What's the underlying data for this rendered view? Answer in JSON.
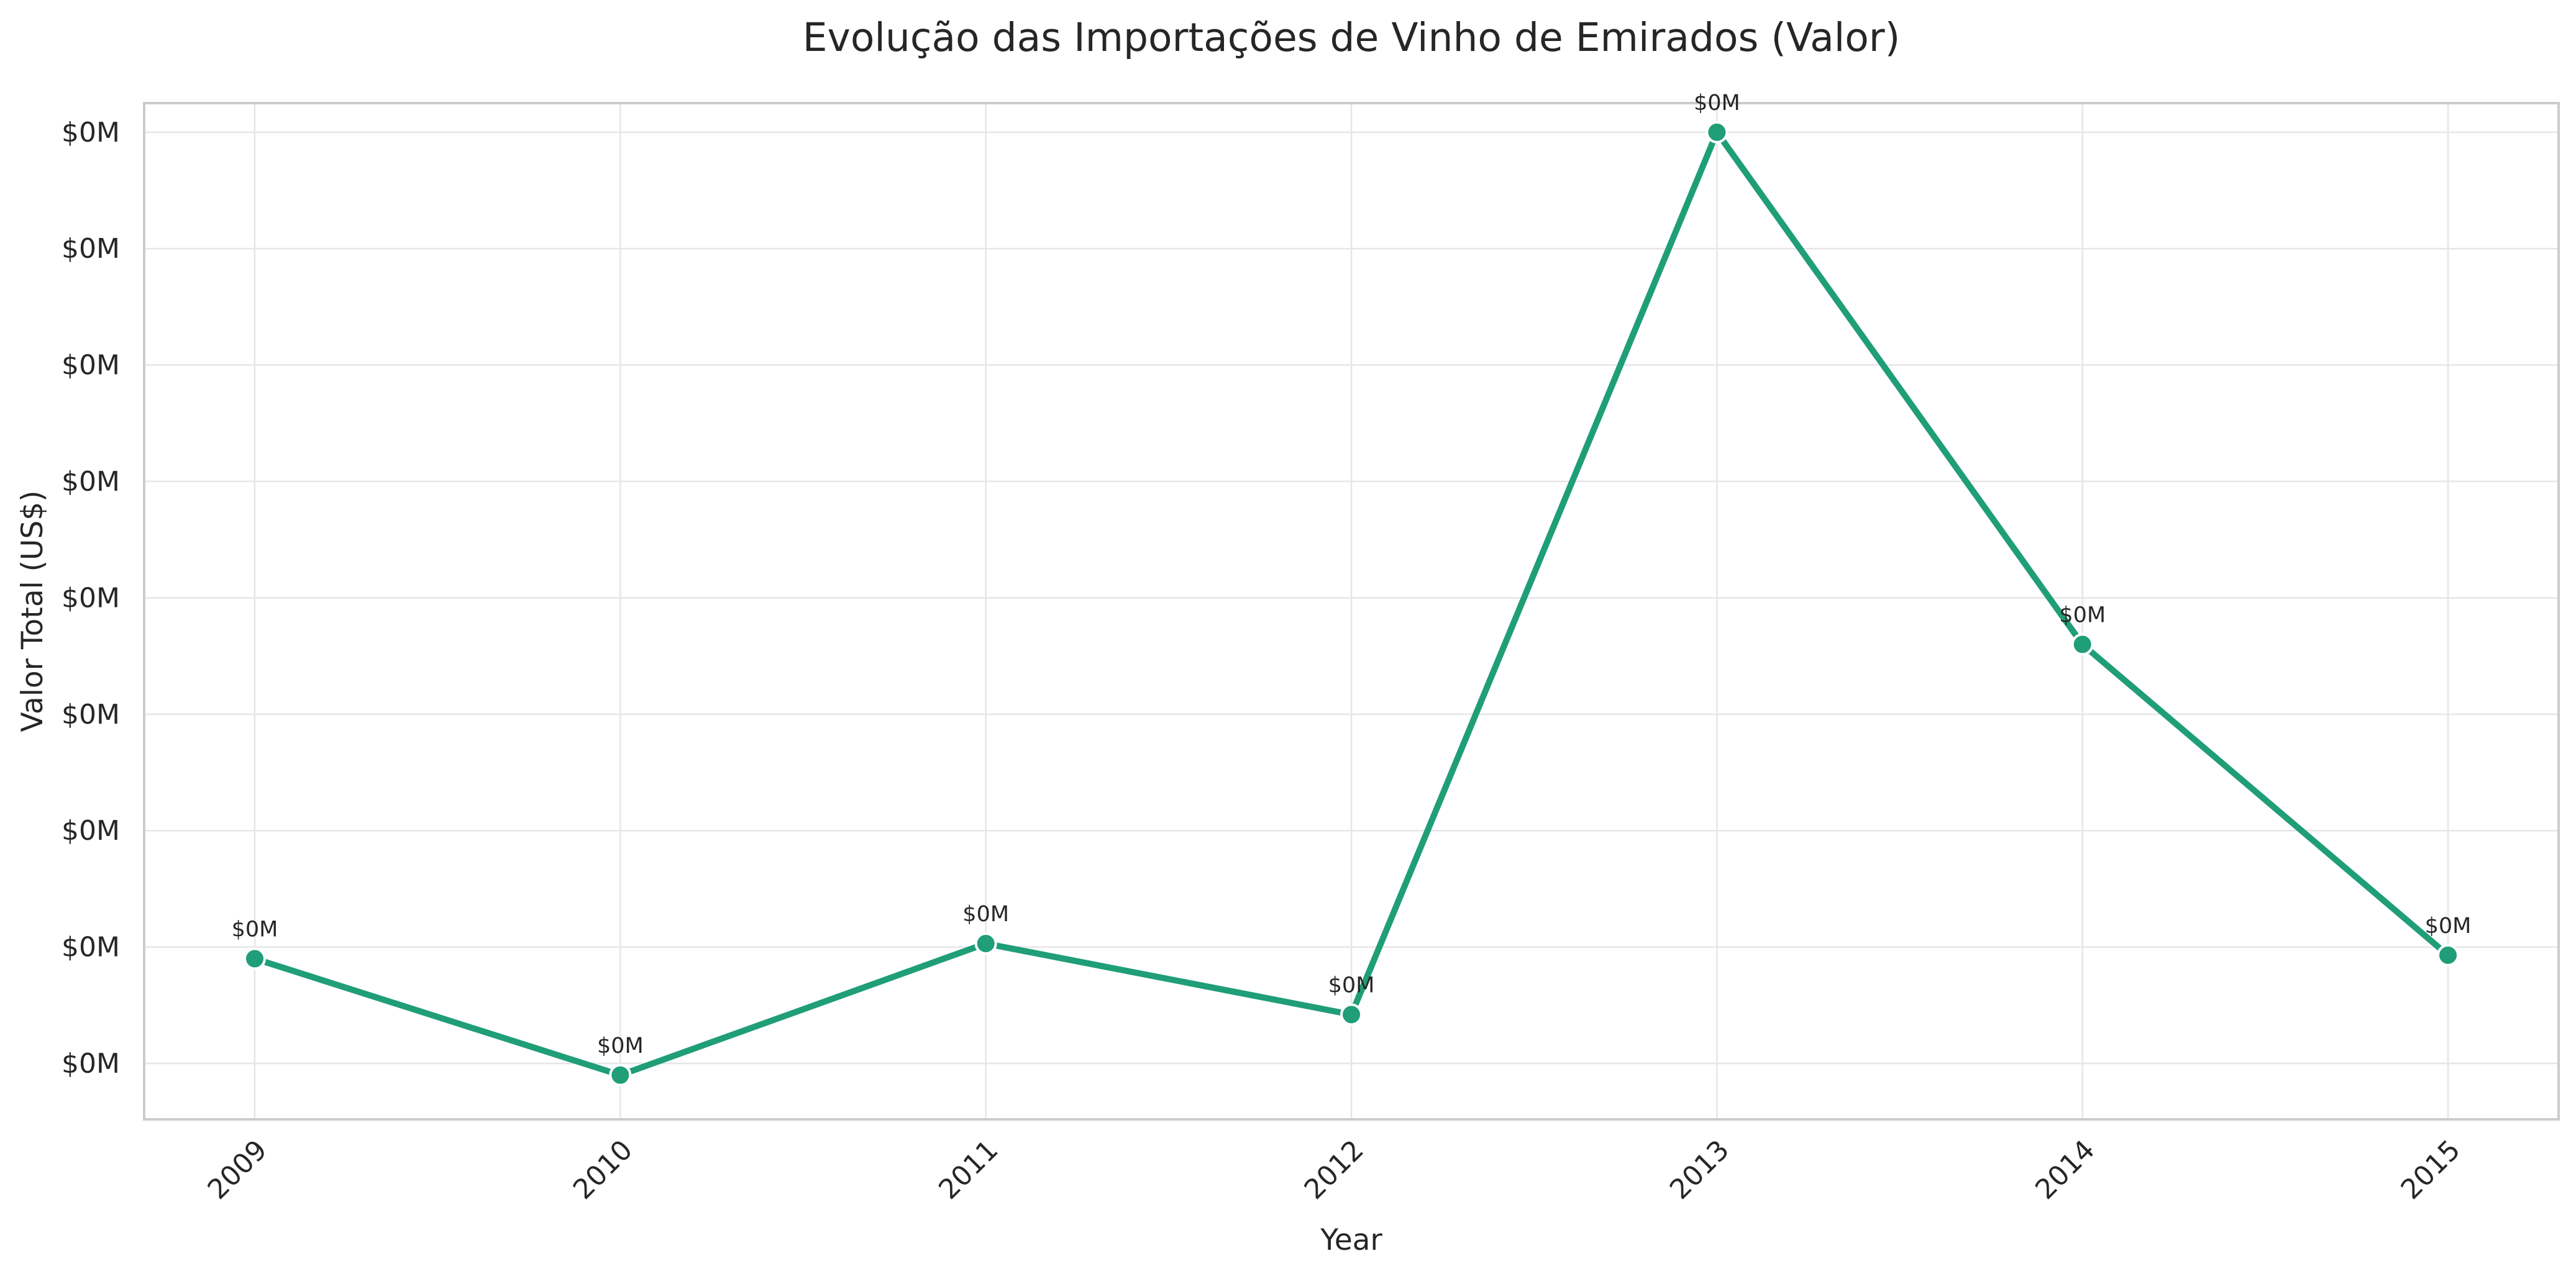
{
  "chart_data": {
    "type": "line",
    "title": "Evolução das Importações de Vinho de Emirados (Valor)",
    "xlabel": "Year",
    "ylabel": "Valor Total (US$)",
    "x": [
      "2009",
      "2010",
      "2011",
      "2012",
      "2013",
      "2014",
      "2015"
    ],
    "series": [
      {
        "values": [
          28,
          18,
          29.3,
          23.2,
          99,
          55,
          28.3
        ],
        "labels": [
          "$0M",
          "$0M",
          "$0M",
          "$0M",
          "$0M",
          "$0M",
          "$0M"
        ],
        "color": "#1f9e77"
      }
    ],
    "y_ticks": [
      19,
      29,
      39,
      49,
      59,
      69,
      79,
      89,
      99
    ],
    "y_tick_labels": [
      "$0M",
      "$0M",
      "$0M",
      "$0M",
      "$0M",
      "$0M",
      "$0M",
      "$0M",
      "$0M"
    ],
    "ylim": [
      14.2,
      101.5
    ],
    "grid": true,
    "legend": "none"
  }
}
